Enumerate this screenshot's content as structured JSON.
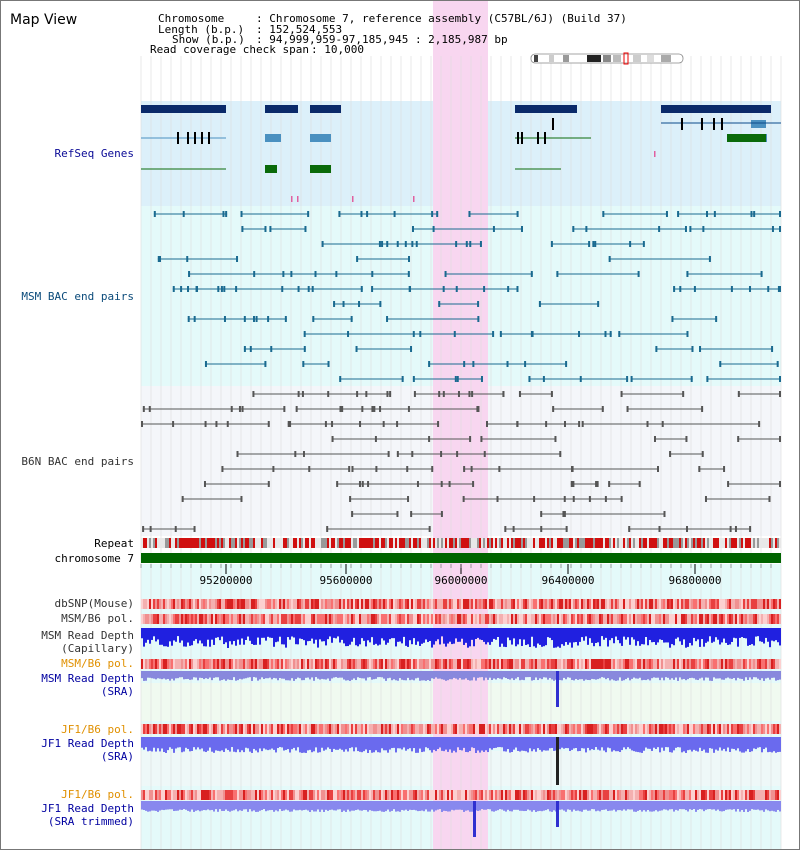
{
  "app": {
    "title": "Map View"
  },
  "info": {
    "chromosome_label": "Chromosome",
    "chromosome_value": ": Chromosome 7, reference assembly (C57BL/6J) (Build 37)",
    "length_label": "Length (b.p.)",
    "length_value": ": 152,524,553",
    "show_label": "Show (b.p.)",
    "show_value": ": 94,999,959-97,185,945 : 2,185,987 bp",
    "coverage_label": "Read coverage check span",
    "coverage_value": ": 10,000"
  },
  "tracks": {
    "refseq": "RefSeq Genes",
    "msm_bac": "MSM BAC end pairs",
    "b6n_bac": "B6N BAC end pairs",
    "repeat": "Repeat",
    "chromosome": "chromosome 7",
    "dbsnp": "dbSNP(Mouse)",
    "msm_b6_pol_1": "MSM/B6 pol.",
    "msm_depth_cap_1": "MSM Read Depth",
    "msm_depth_cap_2": "(Capillary)",
    "msm_b6_pol_2": "MSM/B6 pol.",
    "msm_depth_sra_1": "MSM Read Depth",
    "msm_depth_sra_2": "(SRA)",
    "jf1_b6_pol_1": "JF1/B6 pol.",
    "jf1_depth_sra_1": "JF1 Read Depth",
    "jf1_depth_sra_2": "(SRA)",
    "jf1_b6_pol_2": "JF1/B6 pol.",
    "jf1_depth_trim_1": "JF1 Read Depth",
    "jf1_depth_trim_2": "(SRA trimmed)"
  },
  "axis": {
    "ticks": [
      "95200000",
      "95600000",
      "96000000",
      "96400000",
      "96800000"
    ]
  },
  "colors": {
    "highlight": "#f8d6f0",
    "refseq_bg": "#dcf0fa",
    "msm_bg": "#e4fafa",
    "b6n_bg": "#f4f6fa",
    "depth_bg": "#f0faf0",
    "refseq_label": "#0a0a96",
    "msm_label": "#0a4a7a",
    "b6n_label": "#333333",
    "orange_label": "#e09000",
    "blue_label": "#0000a0",
    "chromosome_bar": "#006400"
  }
}
